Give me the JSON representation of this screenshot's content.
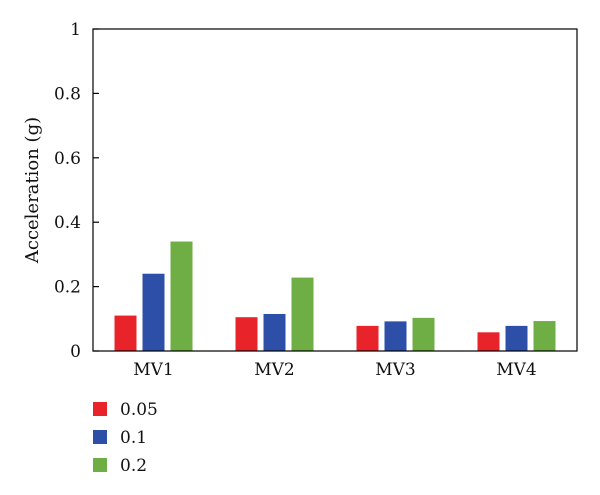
{
  "chart_data": {
    "type": "bar",
    "title": "",
    "xlabel": "",
    "ylabel": "Acceleration (g)",
    "ylim": [
      0,
      1
    ],
    "yticks": [
      0,
      0.2,
      0.4,
      0.6,
      0.8,
      1
    ],
    "ytick_labels": [
      "0",
      "0.2",
      "0.4",
      "0.6",
      "0.8",
      "1"
    ],
    "categories": [
      "MV1",
      "MV2",
      "MV3",
      "MV4"
    ],
    "series": [
      {
        "name": "0.05",
        "color": "#e8232a",
        "values": [
          0.11,
          0.105,
          0.078,
          0.058
        ]
      },
      {
        "name": "0.1",
        "color": "#2e4fa8",
        "values": [
          0.24,
          0.115,
          0.092,
          0.078
        ]
      },
      {
        "name": "0.2",
        "color": "#6fae44",
        "values": [
          0.34,
          0.228,
          0.103,
          0.093
        ]
      }
    ],
    "grid": false,
    "legend_position": "bottom-left"
  }
}
